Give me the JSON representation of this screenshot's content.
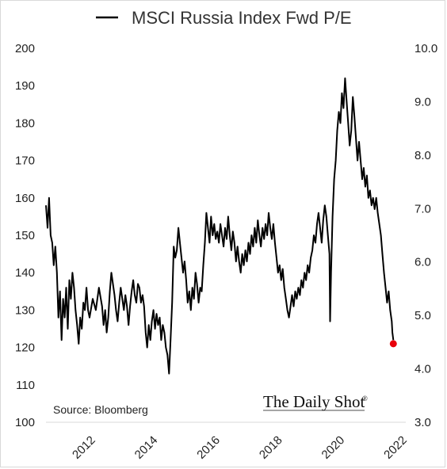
{
  "chart_data": {
    "type": "line",
    "legend": {
      "label": "MSCI Russia Index Fwd P/E",
      "position": "top"
    },
    "y_left": {
      "min": 100,
      "max": 200,
      "ticks": [
        "200",
        "190",
        "180",
        "170",
        "160",
        "150",
        "140",
        "130",
        "120",
        "110",
        "100"
      ]
    },
    "y_right": {
      "min": 3.0,
      "max": 10.0,
      "ticks": [
        "10.0",
        "9.0",
        "8.0",
        "7.0",
        "6.0",
        "5.0",
        "4.0",
        "3.0"
      ]
    },
    "x_axis": {
      "min": 2011.0,
      "max": 2022.55,
      "ticks": [
        "2012",
        "2014",
        "2016",
        "2018",
        "2020",
        "2022"
      ]
    },
    "grid": false,
    "series": [
      {
        "name": "MSCI Russia Index Fwd P/E",
        "axis": "left",
        "color": "#000000",
        "points": [
          [
            2011.0,
            158
          ],
          [
            2011.05,
            152
          ],
          [
            2011.1,
            160
          ],
          [
            2011.15,
            150
          ],
          [
            2011.2,
            148
          ],
          [
            2011.25,
            142
          ],
          [
            2011.3,
            147
          ],
          [
            2011.35,
            140
          ],
          [
            2011.4,
            128
          ],
          [
            2011.45,
            135
          ],
          [
            2011.5,
            122
          ],
          [
            2011.55,
            133
          ],
          [
            2011.6,
            128
          ],
          [
            2011.65,
            136
          ],
          [
            2011.7,
            125
          ],
          [
            2011.75,
            138
          ],
          [
            2011.8,
            133
          ],
          [
            2011.85,
            140
          ],
          [
            2011.9,
            136
          ],
          [
            2011.95,
            130
          ],
          [
            2012.0,
            126
          ],
          [
            2012.05,
            121
          ],
          [
            2012.1,
            128
          ],
          [
            2012.15,
            125
          ],
          [
            2012.2,
            132
          ],
          [
            2012.25,
            130
          ],
          [
            2012.3,
            136
          ],
          [
            2012.35,
            130
          ],
          [
            2012.4,
            128
          ],
          [
            2012.5,
            133
          ],
          [
            2012.6,
            130
          ],
          [
            2012.7,
            136
          ],
          [
            2012.8,
            131
          ],
          [
            2012.85,
            126
          ],
          [
            2012.9,
            130
          ],
          [
            2012.95,
            124
          ],
          [
            2013.0,
            128
          ],
          [
            2013.05,
            135
          ],
          [
            2013.1,
            140
          ],
          [
            2013.15,
            137
          ],
          [
            2013.2,
            134
          ],
          [
            2013.25,
            130
          ],
          [
            2013.3,
            127
          ],
          [
            2013.35,
            132
          ],
          [
            2013.4,
            136
          ],
          [
            2013.45,
            133
          ],
          [
            2013.5,
            130
          ],
          [
            2013.55,
            134
          ],
          [
            2013.6,
            131
          ],
          [
            2013.65,
            126
          ],
          [
            2013.7,
            131
          ],
          [
            2013.75,
            135
          ],
          [
            2013.8,
            138
          ],
          [
            2013.85,
            134
          ],
          [
            2013.9,
            132
          ],
          [
            2013.95,
            137
          ],
          [
            2014.0,
            136
          ],
          [
            2014.05,
            132
          ],
          [
            2014.1,
            134
          ],
          [
            2014.15,
            131
          ],
          [
            2014.2,
            124
          ],
          [
            2014.25,
            120
          ],
          [
            2014.3,
            126
          ],
          [
            2014.35,
            122
          ],
          [
            2014.4,
            127
          ],
          [
            2014.45,
            130
          ],
          [
            2014.5,
            125
          ],
          [
            2014.55,
            129
          ],
          [
            2014.6,
            126
          ],
          [
            2014.65,
            128
          ],
          [
            2014.7,
            122
          ],
          [
            2014.75,
            126
          ],
          [
            2014.8,
            124
          ],
          [
            2014.85,
            120
          ],
          [
            2014.9,
            118
          ],
          [
            2014.95,
            113
          ],
          [
            2015.0,
            122
          ],
          [
            2015.05,
            132
          ],
          [
            2015.1,
            147
          ],
          [
            2015.15,
            144
          ],
          [
            2015.2,
            146
          ],
          [
            2015.25,
            152
          ],
          [
            2015.3,
            148
          ],
          [
            2015.35,
            144
          ],
          [
            2015.4,
            140
          ],
          [
            2015.45,
            143
          ],
          [
            2015.5,
            138
          ],
          [
            2015.55,
            132
          ],
          [
            2015.6,
            135
          ],
          [
            2015.65,
            130
          ],
          [
            2015.7,
            136
          ],
          [
            2015.75,
            133
          ],
          [
            2015.8,
            140
          ],
          [
            2015.85,
            137
          ],
          [
            2015.9,
            132
          ],
          [
            2015.95,
            136
          ],
          [
            2016.0,
            135
          ],
          [
            2016.05,
            142
          ],
          [
            2016.1,
            148
          ],
          [
            2016.15,
            156
          ],
          [
            2016.2,
            152
          ],
          [
            2016.25,
            148
          ],
          [
            2016.3,
            155
          ],
          [
            2016.35,
            150
          ],
          [
            2016.4,
            153
          ],
          [
            2016.45,
            149
          ],
          [
            2016.5,
            151
          ],
          [
            2016.55,
            148
          ],
          [
            2016.6,
            153
          ],
          [
            2016.65,
            150
          ],
          [
            2016.7,
            147
          ],
          [
            2016.75,
            152
          ],
          [
            2016.8,
            149
          ],
          [
            2016.85,
            155
          ],
          [
            2016.9,
            150
          ],
          [
            2016.95,
            146
          ],
          [
            2017.0,
            151
          ],
          [
            2017.05,
            148
          ],
          [
            2017.1,
            143
          ],
          [
            2017.15,
            147
          ],
          [
            2017.2,
            143
          ],
          [
            2017.25,
            140
          ],
          [
            2017.3,
            145
          ],
          [
            2017.35,
            142
          ],
          [
            2017.4,
            146
          ],
          [
            2017.45,
            143
          ],
          [
            2017.5,
            148
          ],
          [
            2017.55,
            145
          ],
          [
            2017.6,
            150
          ],
          [
            2017.65,
            147
          ],
          [
            2017.7,
            152
          ],
          [
            2017.75,
            148
          ],
          [
            2017.8,
            154
          ],
          [
            2017.85,
            150
          ],
          [
            2017.9,
            147
          ],
          [
            2017.95,
            152
          ],
          [
            2018.0,
            149
          ],
          [
            2018.05,
            153
          ],
          [
            2018.1,
            150
          ],
          [
            2018.15,
            156
          ],
          [
            2018.2,
            152
          ],
          [
            2018.25,
            149
          ],
          [
            2018.3,
            153
          ],
          [
            2018.35,
            148
          ],
          [
            2018.4,
            144
          ],
          [
            2018.45,
            140
          ],
          [
            2018.5,
            142
          ],
          [
            2018.55,
            138
          ],
          [
            2018.6,
            141
          ],
          [
            2018.65,
            136
          ],
          [
            2018.7,
            133
          ],
          [
            2018.75,
            130
          ],
          [
            2018.8,
            128
          ],
          [
            2018.85,
            131
          ],
          [
            2018.9,
            134
          ],
          [
            2018.95,
            131
          ],
          [
            2019.0,
            135
          ],
          [
            2019.05,
            133
          ],
          [
            2019.1,
            136
          ],
          [
            2019.15,
            134
          ],
          [
            2019.2,
            138
          ],
          [
            2019.25,
            136
          ],
          [
            2019.3,
            140
          ],
          [
            2019.35,
            138
          ],
          [
            2019.4,
            142
          ],
          [
            2019.45,
            140
          ],
          [
            2019.5,
            144
          ],
          [
            2019.55,
            146
          ],
          [
            2019.6,
            150
          ],
          [
            2019.65,
            148
          ],
          [
            2019.7,
            153
          ],
          [
            2019.75,
            156
          ],
          [
            2019.8,
            152
          ],
          [
            2019.85,
            148
          ],
          [
            2019.9,
            154
          ],
          [
            2019.95,
            158
          ],
          [
            2020.0,
            155
          ],
          [
            2020.05,
            150
          ],
          [
            2020.1,
            145
          ],
          [
            2020.12,
            127
          ],
          [
            2020.15,
            140
          ],
          [
            2020.2,
            155
          ],
          [
            2020.25,
            165
          ],
          [
            2020.3,
            170
          ],
          [
            2020.35,
            178
          ],
          [
            2020.4,
            183
          ],
          [
            2020.45,
            180
          ],
          [
            2020.5,
            188
          ],
          [
            2020.55,
            184
          ],
          [
            2020.6,
            192
          ],
          [
            2020.65,
            186
          ],
          [
            2020.7,
            180
          ],
          [
            2020.75,
            174
          ],
          [
            2020.8,
            178
          ],
          [
            2020.85,
            187
          ],
          [
            2020.9,
            182
          ],
          [
            2020.95,
            176
          ],
          [
            2021.0,
            170
          ],
          [
            2021.05,
            175
          ],
          [
            2021.1,
            170
          ],
          [
            2021.15,
            165
          ],
          [
            2021.2,
            168
          ],
          [
            2021.25,
            163
          ],
          [
            2021.3,
            166
          ],
          [
            2021.35,
            160
          ],
          [
            2021.4,
            162
          ],
          [
            2021.45,
            158
          ],
          [
            2021.5,
            160
          ],
          [
            2021.55,
            157
          ],
          [
            2021.6,
            160
          ],
          [
            2021.65,
            156
          ],
          [
            2021.7,
            153
          ],
          [
            2021.75,
            150
          ],
          [
            2021.8,
            145
          ],
          [
            2021.85,
            140
          ],
          [
            2021.9,
            136
          ],
          [
            2021.95,
            132
          ],
          [
            2022.0,
            135
          ],
          [
            2022.05,
            130
          ],
          [
            2022.1,
            127
          ],
          [
            2022.12,
            124
          ],
          [
            2022.15,
            122
          ]
        ]
      }
    ],
    "marker": {
      "x": 2022.15,
      "y": 121,
      "color": "#e8000b"
    },
    "source": "Source: Bloomberg",
    "brand": "The Daily Shot",
    "brand_mark": "®"
  }
}
